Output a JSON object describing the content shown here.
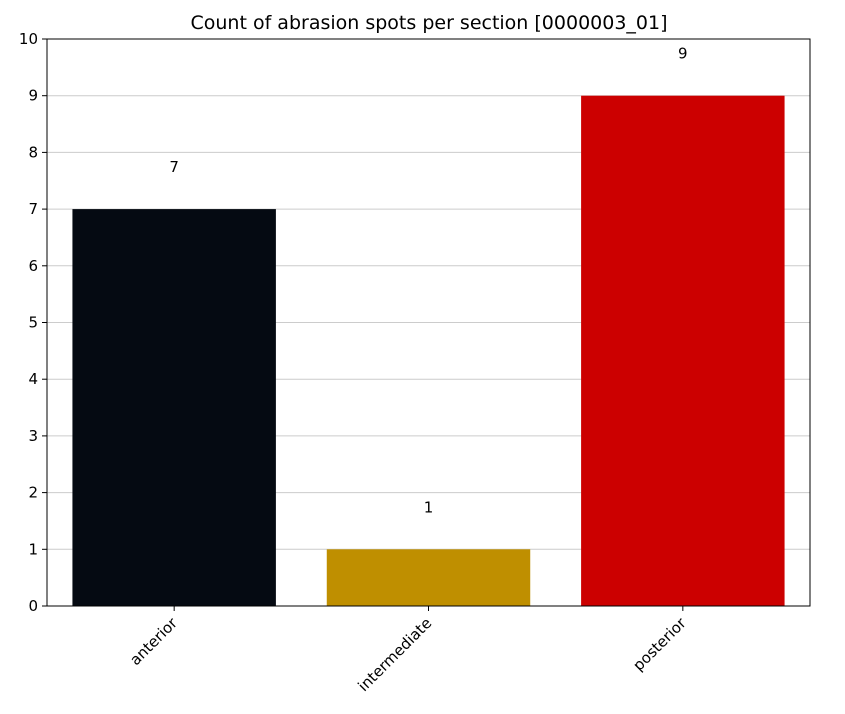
{
  "chart_data": {
    "type": "bar",
    "title": "Count of abrasion spots per section [0000003_01]",
    "xlabel": "",
    "ylabel": "",
    "categories": [
      "anterior",
      "intermediate",
      "posterior"
    ],
    "values": [
      7,
      1,
      9
    ],
    "bar_colors": [
      "#050a12",
      "#bf8f00",
      "#cc0000"
    ],
    "data_labels": [
      "7",
      "1",
      "9"
    ],
    "ylim": [
      0,
      10
    ],
    "yticks": [
      0,
      1,
      2,
      3,
      4,
      5,
      6,
      7,
      8,
      9,
      10
    ],
    "grid": "horizontal",
    "x_tick_rotation": -45
  }
}
